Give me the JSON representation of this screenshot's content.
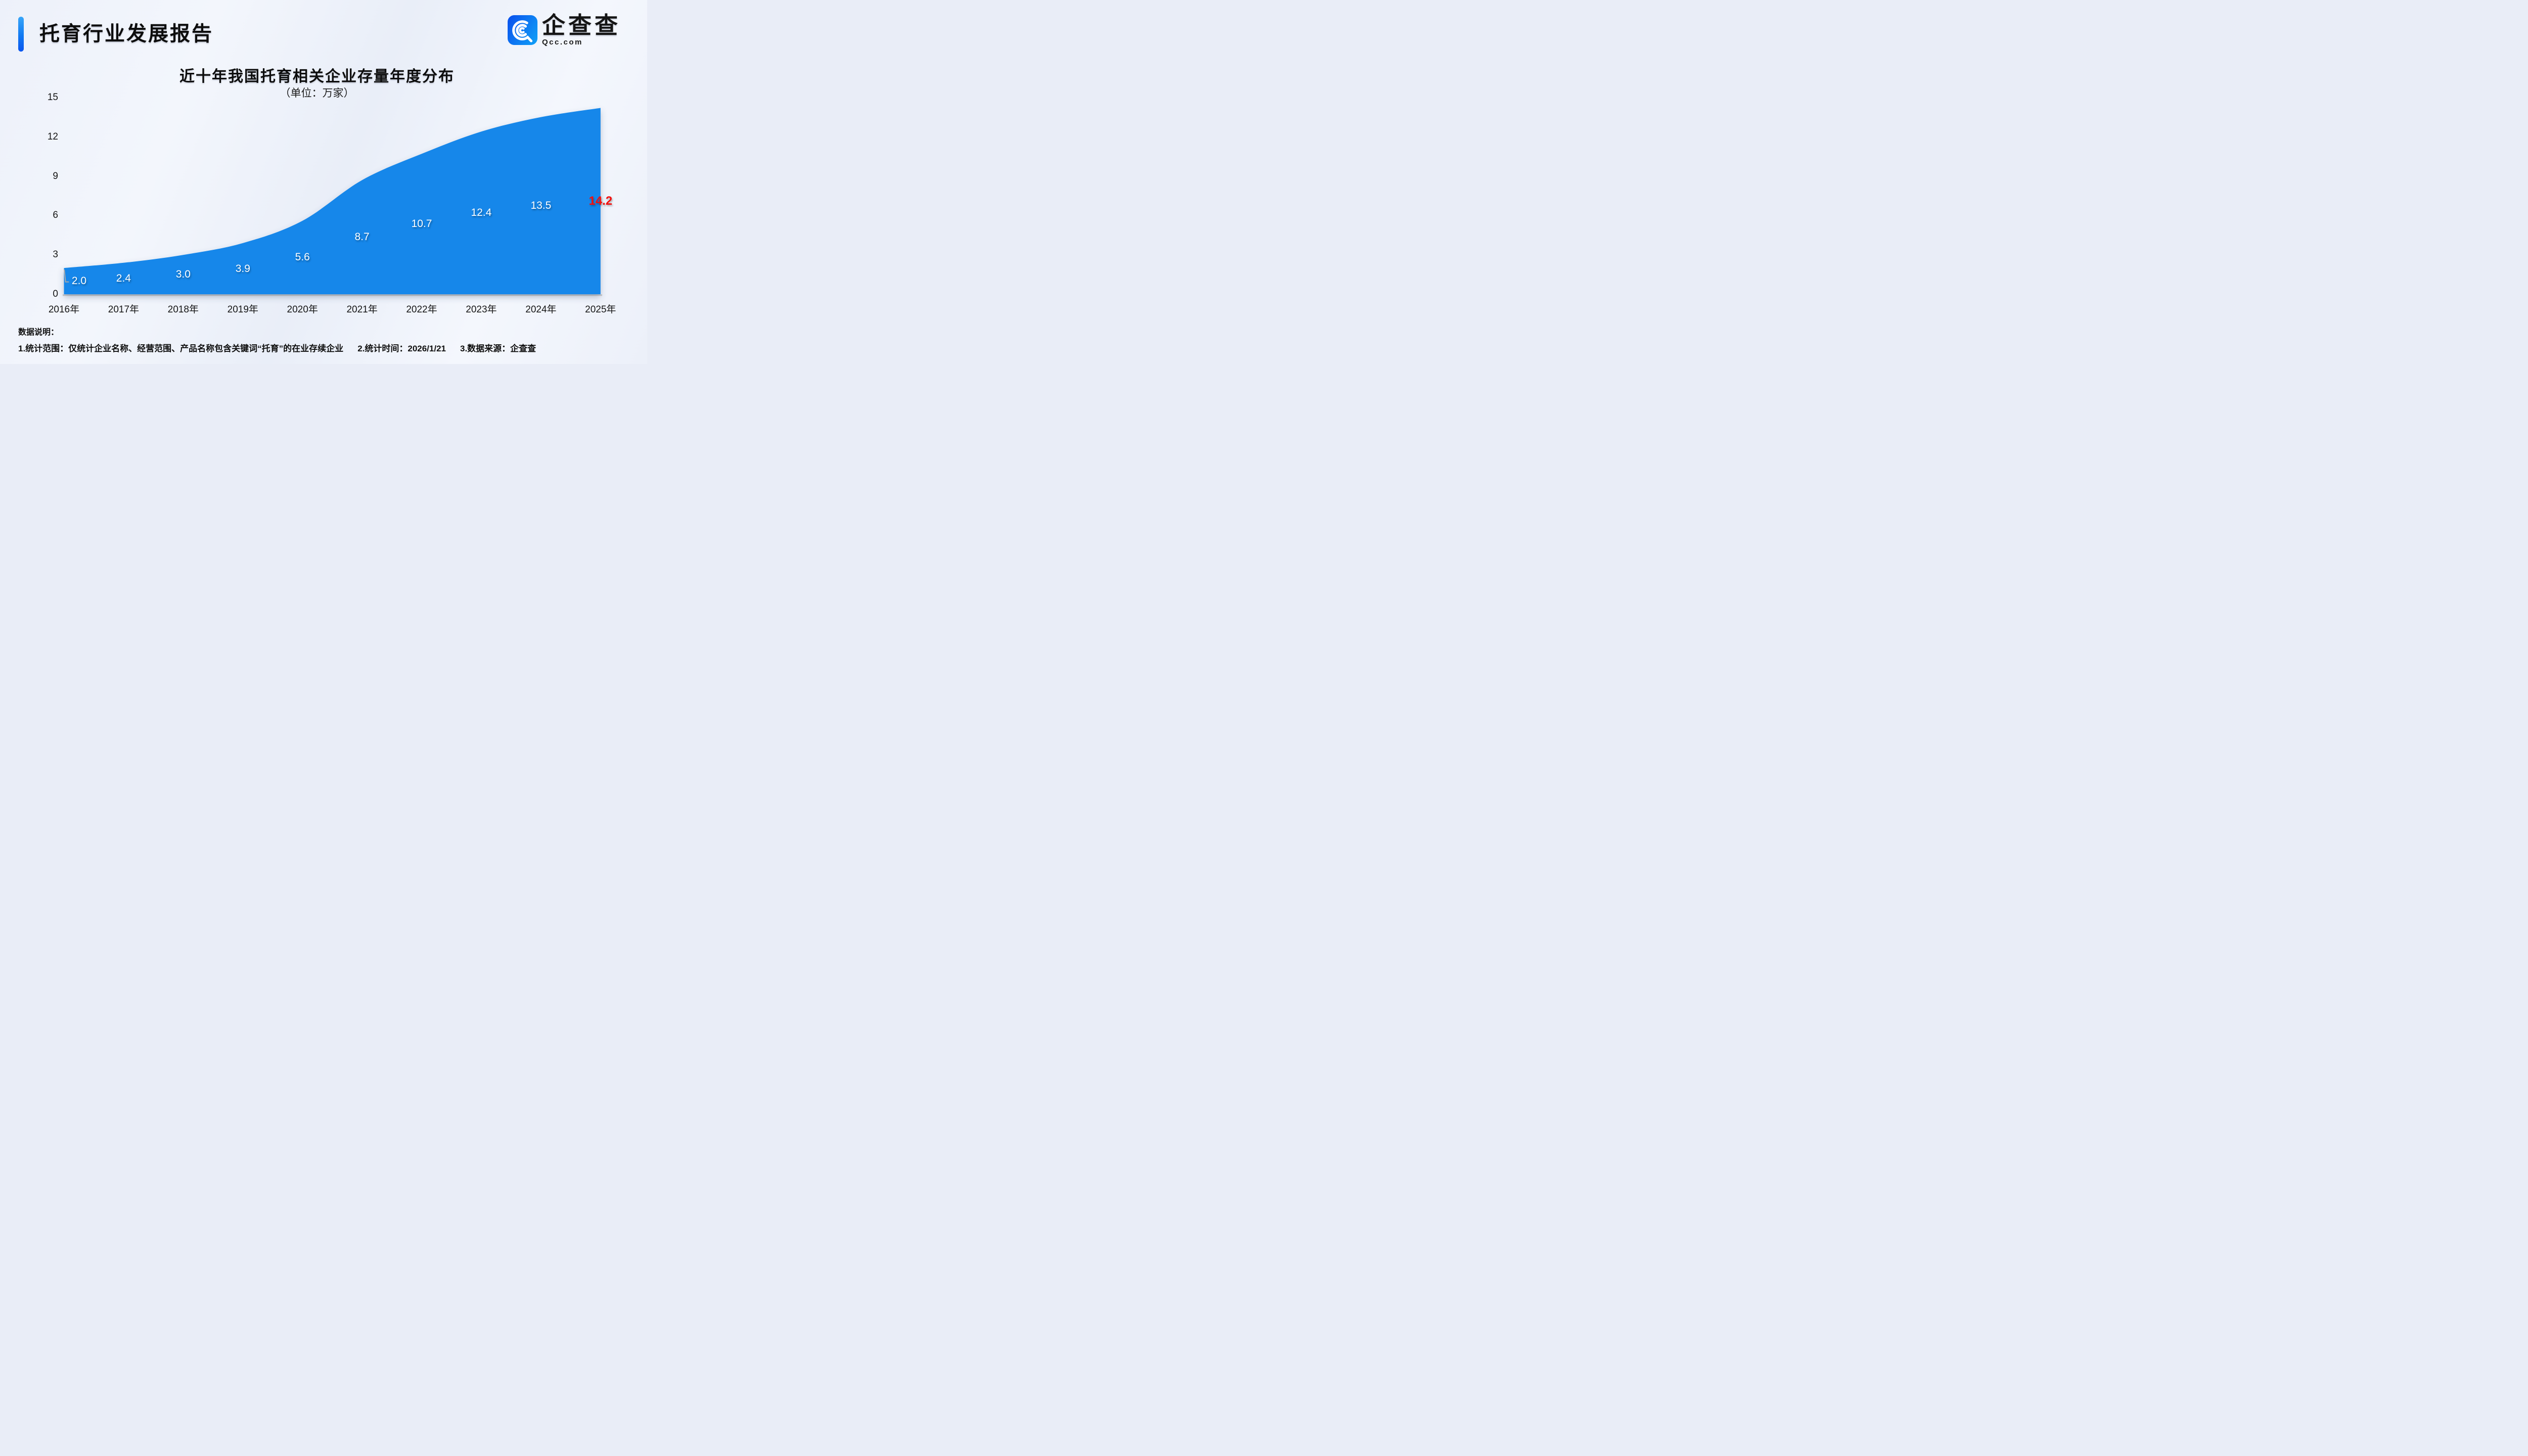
{
  "header": {
    "title": "托育行业发展报告",
    "logo": {
      "icon": "qcc-logo-icon",
      "brand_cn": "企查查",
      "brand_domain": "Qcc.com"
    }
  },
  "chart_data": {
    "type": "area",
    "title": "近十年我国托育相关企业存量年度分布",
    "subtitle": "（单位：万家）",
    "unit": "万家",
    "categories": [
      "2016年",
      "2017年",
      "2018年",
      "2019年",
      "2020年",
      "2021年",
      "2022年",
      "2023年",
      "2024年",
      "2025年"
    ],
    "values": [
      2.0,
      2.4,
      3.0,
      3.9,
      5.6,
      8.7,
      10.7,
      12.4,
      13.5,
      14.2
    ],
    "labels": [
      "2.0",
      "2.4",
      "3.0",
      "3.9",
      "5.6",
      "8.7",
      "10.7",
      "12.4",
      "13.5",
      "14.2"
    ],
    "y_ticks": [
      0,
      3,
      6,
      9,
      12,
      15
    ],
    "ylim": [
      0,
      15
    ],
    "xlabel": "",
    "ylabel": "",
    "grid": false,
    "legend_position": "none",
    "area_color": "#1587ea",
    "label_color": "#ffffff",
    "highlight_last_color": "#f2100e",
    "baseline_color": "#c9c9c9",
    "leader_color": "#a9a9a9"
  },
  "theme": {
    "accent_blue": "#1587ea",
    "accent_blue_dark": "#0a55ee",
    "accent_blue_light": "#38a6f8",
    "background": "#eef2fb",
    "text_dark": "#111111"
  },
  "footer": {
    "heading": "数据说明：",
    "notes": [
      "1.统计范围：仅统计企业名称、经营范围、产品名称包含关键词“托育”的在业存续企业",
      "2.统计时间：2026/1/21",
      "3.数据来源：企查查"
    ]
  }
}
